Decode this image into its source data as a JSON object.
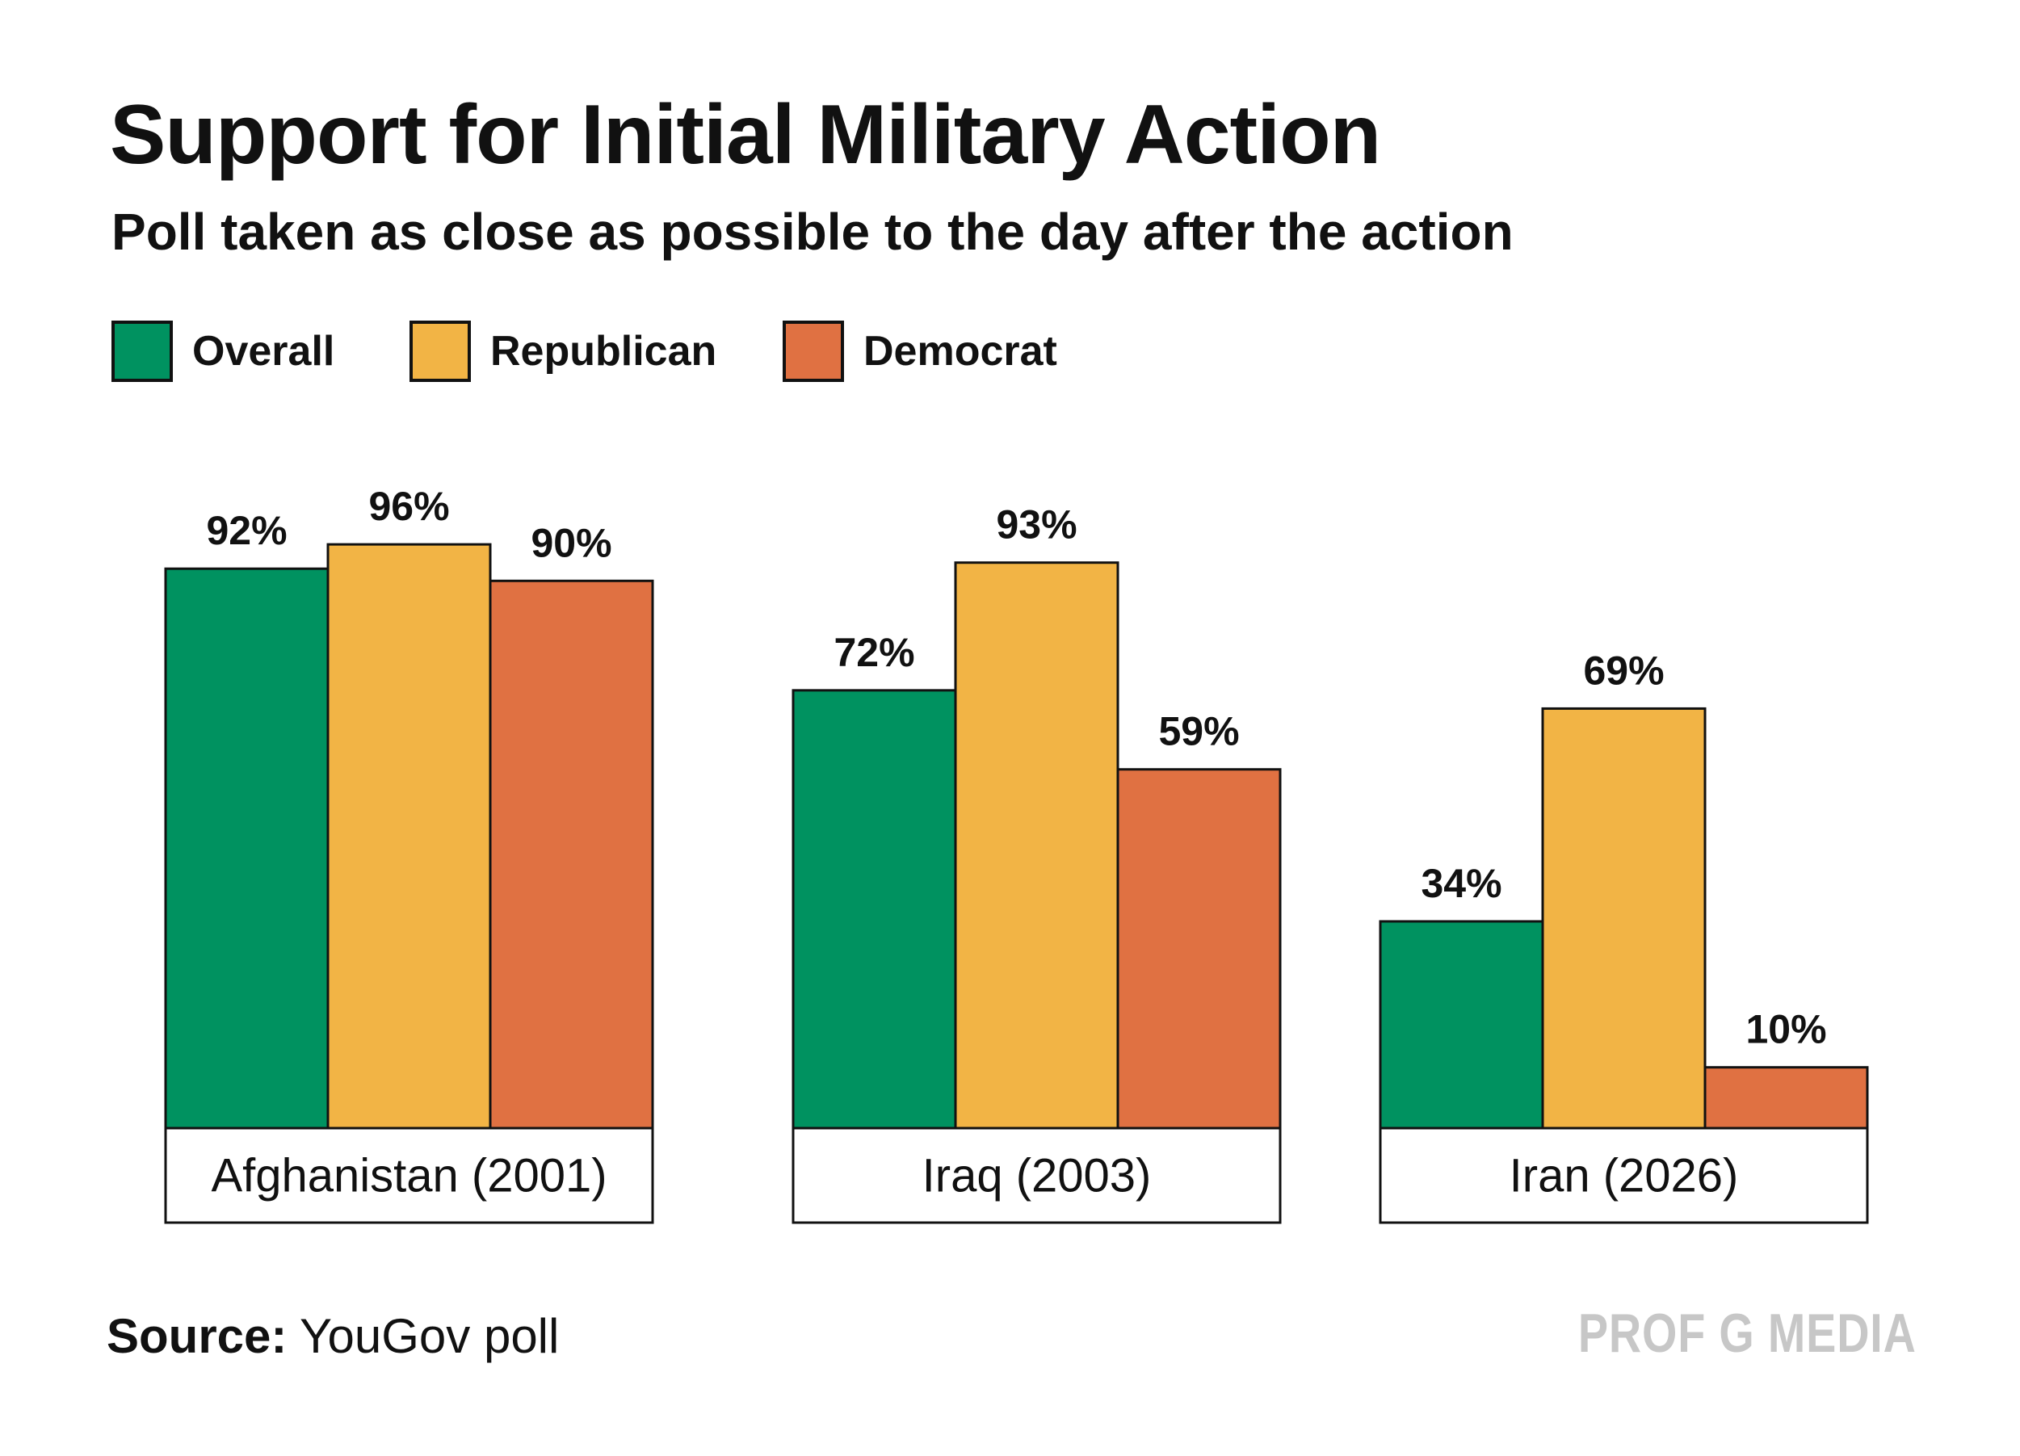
{
  "header": {
    "title": "Support for Initial Military Action",
    "subtitle": "Poll taken as close as possible to the day after the action"
  },
  "footer": {
    "source_label": "Source:",
    "source_value": "YouGov poll",
    "brand": "PROF G MEDIA"
  },
  "colors": {
    "overall": "#009260",
    "republican": "#f2b445",
    "democrat": "#e07142",
    "outline": "#111111"
  },
  "chart_data": {
    "type": "bar",
    "title": "Support for Initial Military Action",
    "subtitle": "Poll taken as close as possible to the day after the action",
    "xlabel": "",
    "ylabel": "",
    "ylim": [
      0,
      100
    ],
    "categories": [
      "Afghanistan (2001)",
      "Iraq (2003)",
      "Iran (2026)"
    ],
    "series": [
      {
        "name": "Overall",
        "color_key": "overall",
        "values": [
          92,
          72,
          34
        ],
        "labels": [
          "92%",
          "72%",
          "34%"
        ]
      },
      {
        "name": "Republican",
        "color_key": "republican",
        "values": [
          96,
          93,
          69
        ],
        "labels": [
          "96%",
          "93%",
          "69%"
        ]
      },
      {
        "name": "Democrat",
        "color_key": "democrat",
        "values": [
          90,
          59,
          10
        ],
        "labels": [
          "90%",
          "59%",
          "10%"
        ]
      }
    ],
    "legend": "top-left",
    "grid": false,
    "source": "YouGov poll"
  }
}
